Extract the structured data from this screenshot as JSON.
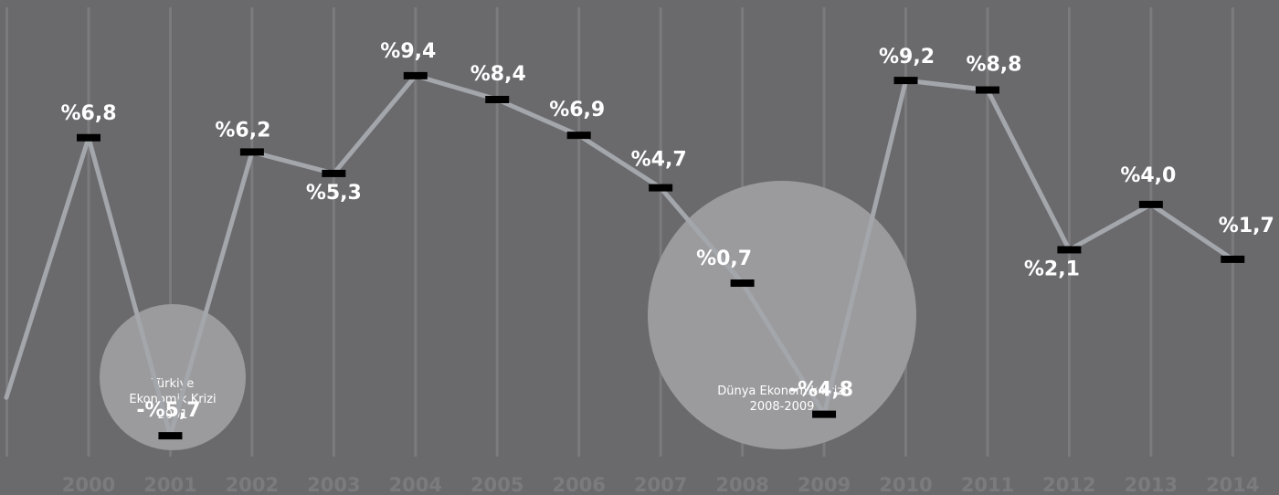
{
  "chart_data": {
    "type": "line",
    "x": [
      "2000",
      "2001",
      "2002",
      "2003",
      "2004",
      "2005",
      "2006",
      "2007",
      "2008",
      "2009",
      "2010",
      "2011",
      "2012",
      "2013",
      "2014"
    ],
    "values": [
      6.8,
      -5.7,
      6.2,
      5.3,
      9.4,
      8.4,
      6.9,
      4.7,
      0.7,
      -4.8,
      9.2,
      8.8,
      2.1,
      4.0,
      1.7
    ],
    "value_labels": [
      "%6,8",
      "-%5,7",
      "%6,2",
      "%5,3",
      "%9,4",
      "%8,4",
      "%6,9",
      "%4,7",
      "%0,7",
      "-%4,8",
      "%9,2",
      "%8,8",
      "%2,1",
      "%4,0",
      "%1,7"
    ],
    "ylim": [
      -6.5,
      12
    ],
    "grid": true,
    "annotations": [
      {
        "lines": [
          "Türkiye",
          "Ekonomik Krizi",
          "2001"
        ],
        "year": "2001"
      },
      {
        "lines": [
          "Dünya Ekonomik Krizi",
          "2008-2009"
        ],
        "year": "2009"
      }
    ],
    "colors": {
      "background": "#6a6a6d",
      "gridline": "#7b7b7e",
      "line": "#a3a6ab",
      "marker": "#000000",
      "crisis_circle": "#9b9b9d",
      "value_text": "#ffffff",
      "year_text": "#7b7b7e"
    }
  }
}
